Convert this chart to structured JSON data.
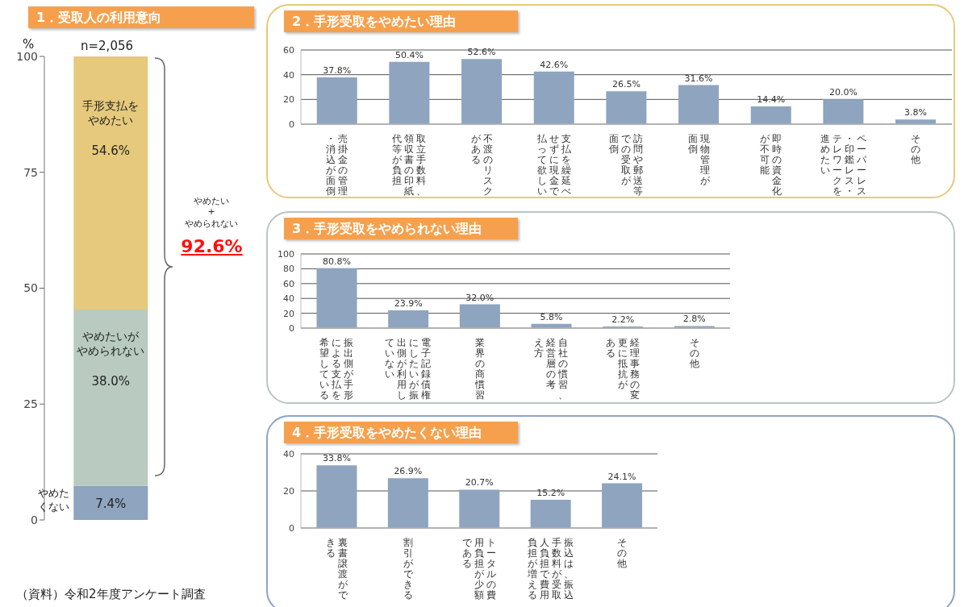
{
  "chart_data": [
    {
      "type": "bar",
      "title": "1．受取人の利用意向",
      "ylabel": "%",
      "categories": [
        null
      ],
      "stacked": true,
      "ylim": [
        0,
        100
      ],
      "yticks": [
        0,
        25,
        50,
        75,
        100
      ],
      "series": [
        {
          "name": "やめたくない",
          "color": "#8ea4bf",
          "values": [
            7.4
          ],
          "value_labels": [
            "7.4%"
          ]
        },
        {
          "name": "やめたいがやめられない",
          "color": "#b9cbc0",
          "values": [
            38.0
          ],
          "value_labels": [
            "38.0%"
          ]
        },
        {
          "name": "手形支払をやめたい",
          "color": "#e6c97c",
          "values": [
            54.6
          ],
          "value_labels": [
            "54.6%"
          ]
        }
      ],
      "annotations": [
        "n=2,056",
        "やめたい",
        "+",
        "やめられない",
        "92.6%",
        "（資料）令和2年度アンケート調査"
      ]
    },
    {
      "type": "bar",
      "title": "2．手形受取をやめたい理由",
      "categories": [
        "売掛金の管理・消込が面倒",
        "取立手数料、領収書の印紙代等が負担",
        "不渡のリスクがある",
        "支払を繰延べせずに現金で払って欲しい",
        "訪問や郵送等での受取が面倒",
        "現物管理が面倒",
        "即時の資金化が不可能",
        "ペーパーレス・印鑑レス・テレワークを進めたい",
        "その他"
      ],
      "values": [
        37.8,
        50.4,
        52.6,
        42.6,
        26.5,
        31.6,
        14.4,
        20.0,
        3.8
      ],
      "value_labels": [
        "37.8%",
        "50.4%",
        "52.6%",
        "42.6%",
        "26.5%",
        "31.6%",
        "14.4%",
        "20.0%",
        "3.8%"
      ],
      "color": "#8ea4bf",
      "ylim": [
        0,
        60
      ],
      "yticks": [
        0,
        20,
        40,
        60
      ],
      "grid": "y"
    },
    {
      "type": "bar",
      "title": "3．手形受取をやめられない理由",
      "categories": [
        "振出側が手形による支払を希望している",
        "電子記録債権にしたいが振出側が利用していない",
        "業界の商慣習",
        "自社の慣習、経営層の考え方",
        "経理事務の変更に抵抗がある",
        "その他"
      ],
      "values": [
        80.8,
        23.9,
        32.0,
        5.8,
        2.2,
        2.8
      ],
      "value_labels": [
        "80.8%",
        "23.9%",
        "32.0%",
        "5.8%",
        "2.2%",
        "2.8%"
      ],
      "color": "#8ea4bf",
      "ylim": [
        0,
        100
      ],
      "yticks": [
        0,
        20,
        40,
        60,
        80,
        100
      ],
      "grid": "y"
    },
    {
      "type": "bar",
      "title": "4．手形受取をやめたくない理由",
      "categories": [
        "裏書譲渡ができる",
        "割引ができる",
        "トータルの費用負担が少額である",
        "振込は、振込手数料が受取人負担で費用負担が増える",
        "その他"
      ],
      "values": [
        33.8,
        26.9,
        20.7,
        15.2,
        24.1
      ],
      "value_labels": [
        "33.8%",
        "26.9%",
        "20.7%",
        "15.2%",
        "24.1%"
      ],
      "color": "#8ea4bf",
      "ylim": [
        0,
        40
      ],
      "yticks": [
        0,
        20,
        40
      ],
      "grid": "y"
    }
  ]
}
